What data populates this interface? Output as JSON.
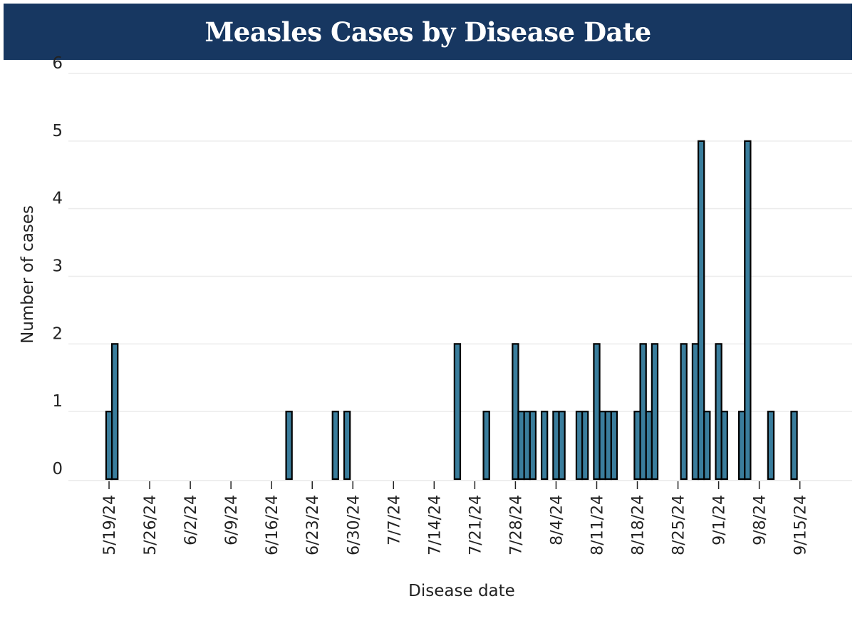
{
  "header": {
    "title": "Measles Cases by Disease Date"
  },
  "chart_data": {
    "type": "bar",
    "title": "Measles Cases by Disease Date",
    "xlabel": "Disease date",
    "ylabel": "Number of cases",
    "ylim": [
      0,
      6
    ],
    "yticks": [
      0,
      1,
      2,
      3,
      4,
      5,
      6
    ],
    "xlim": [
      "2024-05-12",
      "2024-09-24"
    ],
    "xticks": [
      {
        "date": "2024-05-19",
        "label": "5/19/24"
      },
      {
        "date": "2024-05-26",
        "label": "5/26/24"
      },
      {
        "date": "2024-06-02",
        "label": "6/2/24"
      },
      {
        "date": "2024-06-09",
        "label": "6/9/24"
      },
      {
        "date": "2024-06-16",
        "label": "6/16/24"
      },
      {
        "date": "2024-06-23",
        "label": "6/23/24"
      },
      {
        "date": "2024-06-30",
        "label": "6/30/24"
      },
      {
        "date": "2024-07-07",
        "label": "7/7/24"
      },
      {
        "date": "2024-07-14",
        "label": "7/14/24"
      },
      {
        "date": "2024-07-21",
        "label": "7/21/24"
      },
      {
        "date": "2024-07-28",
        "label": "7/28/24"
      },
      {
        "date": "2024-08-04",
        "label": "8/4/24"
      },
      {
        "date": "2024-08-11",
        "label": "8/11/24"
      },
      {
        "date": "2024-08-18",
        "label": "8/18/24"
      },
      {
        "date": "2024-08-25",
        "label": "8/25/24"
      },
      {
        "date": "2024-09-01",
        "label": "9/1/24"
      },
      {
        "date": "2024-09-08",
        "label": "9/8/24"
      },
      {
        "date": "2024-09-15",
        "label": "9/15/24"
      }
    ],
    "grid": true,
    "bar_color": "#3a7d9c",
    "bar_edge_color": "#000000",
    "points": [
      {
        "date": "2024-05-19",
        "value": 1
      },
      {
        "date": "2024-05-20",
        "value": 2
      },
      {
        "date": "2024-06-19",
        "value": 1
      },
      {
        "date": "2024-06-27",
        "value": 1
      },
      {
        "date": "2024-06-29",
        "value": 1
      },
      {
        "date": "2024-07-18",
        "value": 2
      },
      {
        "date": "2024-07-23",
        "value": 1
      },
      {
        "date": "2024-07-28",
        "value": 2
      },
      {
        "date": "2024-07-29",
        "value": 1
      },
      {
        "date": "2024-07-30",
        "value": 1
      },
      {
        "date": "2024-07-31",
        "value": 1
      },
      {
        "date": "2024-08-02",
        "value": 1
      },
      {
        "date": "2024-08-04",
        "value": 1
      },
      {
        "date": "2024-08-05",
        "value": 1
      },
      {
        "date": "2024-08-08",
        "value": 1
      },
      {
        "date": "2024-08-09",
        "value": 1
      },
      {
        "date": "2024-08-11",
        "value": 2
      },
      {
        "date": "2024-08-12",
        "value": 1
      },
      {
        "date": "2024-08-13",
        "value": 1
      },
      {
        "date": "2024-08-14",
        "value": 1
      },
      {
        "date": "2024-08-18",
        "value": 1
      },
      {
        "date": "2024-08-19",
        "value": 2
      },
      {
        "date": "2024-08-20",
        "value": 1
      },
      {
        "date": "2024-08-21",
        "value": 2
      },
      {
        "date": "2024-08-26",
        "value": 2
      },
      {
        "date": "2024-08-28",
        "value": 2
      },
      {
        "date": "2024-08-29",
        "value": 5
      },
      {
        "date": "2024-08-30",
        "value": 1
      },
      {
        "date": "2024-09-01",
        "value": 2
      },
      {
        "date": "2024-09-02",
        "value": 1
      },
      {
        "date": "2024-09-05",
        "value": 1
      },
      {
        "date": "2024-09-06",
        "value": 5
      },
      {
        "date": "2024-09-10",
        "value": 1
      },
      {
        "date": "2024-09-14",
        "value": 1
      }
    ]
  }
}
